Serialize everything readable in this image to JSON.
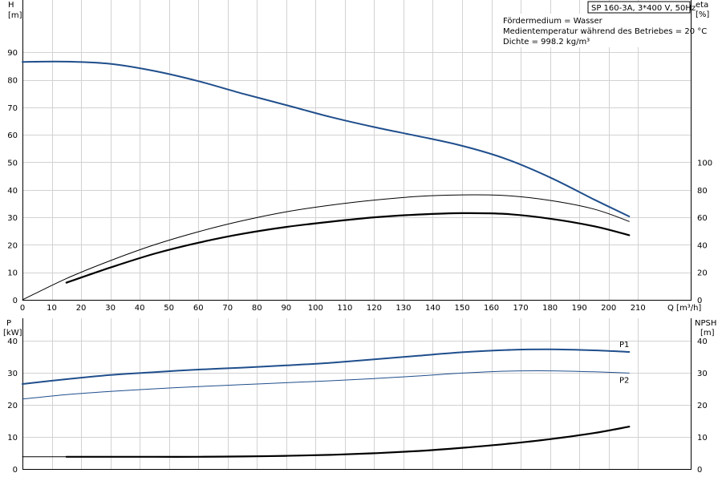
{
  "chart_data": {
    "type": "line",
    "title": "SP 160-3A, 3*400 V, 50Hz",
    "notes": [
      "Fördermedium = Wasser",
      "Medientemperatur während des Betriebes = 20 °C",
      "Dichte = 998.2 kg/m³"
    ],
    "x_axis": {
      "label": "Q [m³/h]",
      "range": [
        0,
        228
      ],
      "ticks": [
        0,
        10,
        20,
        30,
        40,
        50,
        60,
        70,
        80,
        90,
        100,
        110,
        120,
        130,
        140,
        150,
        160,
        170,
        180,
        190,
        200,
        210
      ]
    },
    "upper_panel": {
      "left_axis": {
        "label": "H",
        "unit": "[m]",
        "range": [
          0,
          109
        ],
        "ticks": [
          0,
          10,
          20,
          30,
          40,
          50,
          60,
          70,
          80,
          90
        ]
      },
      "right_axis": {
        "label": "eta",
        "unit": "[%]",
        "range": [
          0,
          218
        ],
        "ticks": [
          0,
          20,
          40,
          60,
          80,
          100
        ]
      },
      "series": [
        {
          "axis": "left",
          "color": "#1f4e8c",
          "width": 2,
          "x": [
            0,
            15,
            30,
            45,
            60,
            75,
            90,
            105,
            120,
            135,
            150,
            165,
            180,
            195,
            207
          ],
          "y": [
            86.5,
            86.6,
            85.8,
            83.2,
            79.5,
            75.0,
            70.8,
            66.5,
            62.8,
            59.5,
            56.0,
            51.2,
            44.5,
            36.5,
            30.3
          ]
        },
        {
          "axis": "right",
          "color": "#000000",
          "width": 1,
          "x": [
            0,
            15,
            30,
            45,
            60,
            75,
            90,
            105,
            120,
            135,
            150,
            165,
            180,
            195,
            207
          ],
          "y": [
            0,
            15.5,
            28.5,
            40.0,
            49.5,
            57.5,
            64.0,
            68.8,
            72.5,
            75.2,
            76.3,
            75.8,
            72.3,
            66.0,
            57.0
          ]
        },
        {
          "axis": "right",
          "color": "#000000",
          "width": 2.2,
          "x": [
            15,
            30,
            45,
            60,
            75,
            90,
            105,
            120,
            135,
            150,
            165,
            180,
            195,
            207
          ],
          "y": [
            12.5,
            23.5,
            33.5,
            41.5,
            48.0,
            53.0,
            56.8,
            60.0,
            62.0,
            63.0,
            62.4,
            59.0,
            53.5,
            47.0
          ]
        }
      ]
    },
    "lower_panel": {
      "left_axis": {
        "label": "P",
        "unit": "[kW]",
        "range": [
          0,
          47
        ],
        "ticks": [
          0,
          10,
          20,
          30,
          40
        ]
      },
      "right_axis": {
        "label": "NPSH",
        "unit": "[m]",
        "range": [
          0,
          47
        ],
        "ticks": [
          0,
          10,
          20,
          30,
          40
        ]
      },
      "series": [
        {
          "name": "P1",
          "axis": "left",
          "color": "#1f4e8c",
          "width": 2,
          "x": [
            0,
            15,
            30,
            45,
            60,
            75,
            90,
            105,
            120,
            135,
            150,
            165,
            180,
            195,
            207
          ],
          "y": [
            26.5,
            28.0,
            29.3,
            30.2,
            31.0,
            31.6,
            32.3,
            33.1,
            34.2,
            35.3,
            36.4,
            37.1,
            37.3,
            37.0,
            36.5
          ]
        },
        {
          "name": "P2",
          "axis": "left",
          "color": "#1f4e8c",
          "width": 1,
          "x": [
            0,
            15,
            30,
            45,
            60,
            75,
            90,
            105,
            120,
            135,
            150,
            165,
            180,
            195,
            207
          ],
          "y": [
            21.8,
            23.2,
            24.2,
            25.0,
            25.7,
            26.3,
            26.9,
            27.5,
            28.2,
            29.0,
            29.9,
            30.5,
            30.6,
            30.3,
            29.9
          ]
        },
        {
          "axis": "right",
          "color": "#000000",
          "width": 1,
          "x": [
            0,
            15
          ],
          "y": [
            3.8,
            3.8
          ]
        },
        {
          "axis": "right",
          "color": "#000000",
          "width": 2.2,
          "x": [
            15,
            30,
            45,
            60,
            75,
            90,
            105,
            120,
            135,
            150,
            165,
            180,
            195,
            207
          ],
          "y": [
            3.8,
            3.8,
            3.8,
            3.8,
            3.9,
            4.1,
            4.4,
            4.9,
            5.6,
            6.6,
            7.8,
            9.3,
            11.2,
            13.2
          ]
        }
      ]
    }
  }
}
